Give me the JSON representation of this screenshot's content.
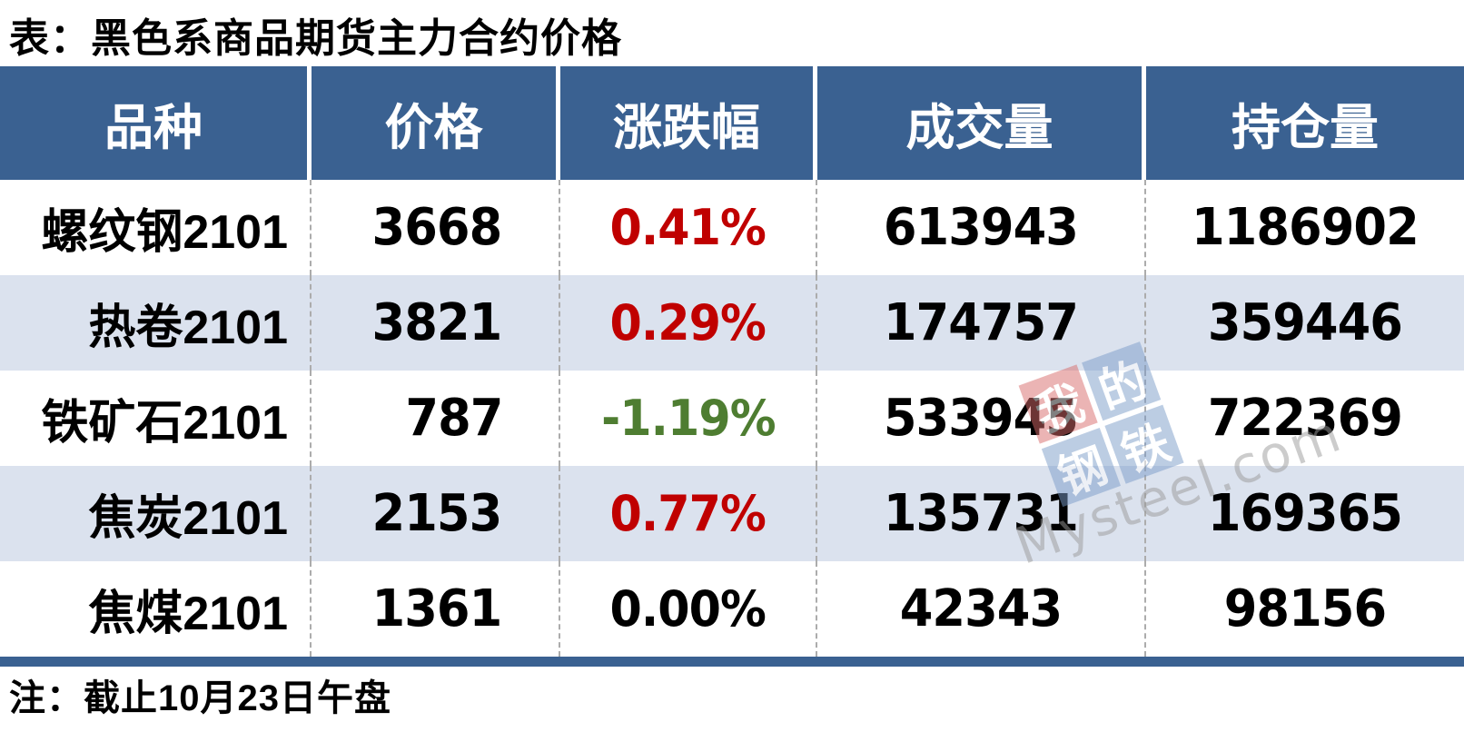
{
  "title": "表：黑色系商品期货主力合约价格",
  "note": "注：截止10月23日午盘",
  "watermark": {
    "tiles": [
      "我",
      "的",
      "钢",
      "铁"
    ],
    "site": "Mysteel.com"
  },
  "colors": {
    "header_bg": "#3A6191",
    "alt_row_bg": "#DBE2EE",
    "footer_bar": "#3A6191",
    "up_red": "#C00000",
    "down_green": "#4E7D31",
    "flat_black": "#000000",
    "divider_dash": "#ACACAC"
  },
  "chart_data": {
    "type": "table",
    "title": "表：黑色系商品期货主力合约价格",
    "columns": [
      "品种",
      "价格",
      "涨跌幅",
      "成交量",
      "持仓量"
    ],
    "rows": [
      {
        "variety": "螺纹钢2101",
        "price": "3668",
        "change": "0.41%",
        "direction": "up",
        "volume": "613943",
        "open_interest": "1186902"
      },
      {
        "variety": "热卷2101",
        "price": "3821",
        "change": "0.29%",
        "direction": "up",
        "volume": "174757",
        "open_interest": "359446"
      },
      {
        "variety": "铁矿石2101",
        "price": "787",
        "change": "-1.19%",
        "direction": "down",
        "volume": "533945",
        "open_interest": "722369"
      },
      {
        "variety": "焦炭2101",
        "price": "2153",
        "change": "0.77%",
        "direction": "up",
        "volume": "135731",
        "open_interest": "169365"
      },
      {
        "variety": "焦煤2101",
        "price": "1361",
        "change": "0.00%",
        "direction": "flat",
        "volume": "42343",
        "open_interest": "98156"
      }
    ],
    "footnote": "注：截止10月23日午盘"
  }
}
